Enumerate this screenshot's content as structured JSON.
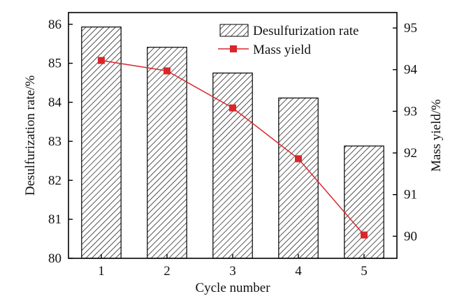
{
  "chart_data": {
    "type": "bar",
    "categories": [
      "1",
      "2",
      "3",
      "4",
      "5"
    ],
    "series": [
      {
        "name": "Desulfurization rate",
        "type": "bar",
        "axis": "left",
        "values": [
          85.93,
          85.41,
          84.75,
          84.11,
          82.88
        ],
        "fill": "hatched",
        "color": "#000000"
      },
      {
        "name": "Mass yield",
        "type": "line",
        "axis": "right",
        "values": [
          94.22,
          93.97,
          93.08,
          91.86,
          90.03
        ],
        "color": "#d9262b",
        "marker": "square"
      }
    ],
    "xlabel": "Cycle number",
    "ylabel": "Desulfurization rate/%",
    "ylabel_right": "Mass yield/%",
    "ylim": [
      80,
      86.3
    ],
    "ylim_right": [
      89.47,
      95.37
    ],
    "yticks": [
      "80",
      "81",
      "82",
      "83",
      "84",
      "85",
      "86"
    ],
    "yticks_right": [
      "90",
      "91",
      "92",
      "93",
      "94",
      "95"
    ],
    "grid": false,
    "legend_position": "top-right"
  }
}
